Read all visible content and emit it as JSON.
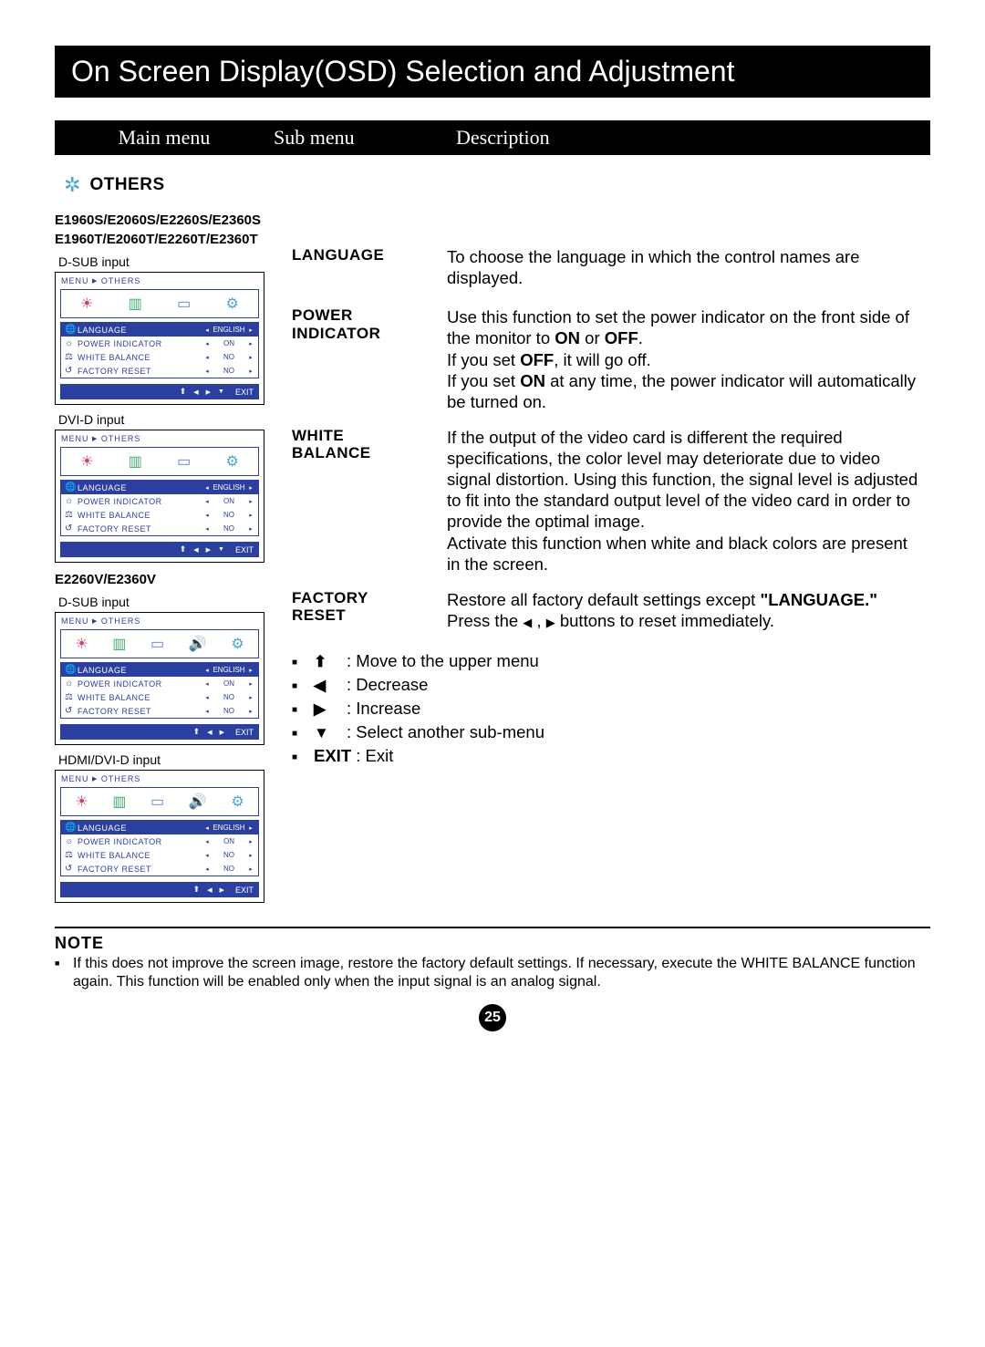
{
  "title": "On Screen Display(OSD) Selection and Adjustment",
  "headers": {
    "main": "Main menu",
    "sub": "Sub menu",
    "desc": "Description"
  },
  "section": {
    "label": "OTHERS"
  },
  "models": {
    "group1_line1": "E1960S/E2060S/E2260S/E2360S",
    "group1_line2": "E1960T/E2060T/E2260T/E2360T",
    "group2": "E2260V/E2360V"
  },
  "inputs": {
    "dsub": "D-SUB input",
    "dvid": "DVI-D input",
    "dsub2": "D-SUB input",
    "hdmi": "HDMI/DVI-D input"
  },
  "osd": {
    "crumb_menu": "MENU",
    "crumb_section": "OTHERS",
    "exit": "EXIT",
    "rows": [
      {
        "icon": "🌐",
        "name": "LANGUAGE",
        "val": "ENGLISH",
        "sel": true
      },
      {
        "icon": "☼",
        "name": "POWER INDICATOR",
        "val": "ON",
        "sel": false
      },
      {
        "icon": "⚖",
        "name": "WHITE BALANCE",
        "val": "NO",
        "sel": false
      },
      {
        "icon": "↺",
        "name": "FACTORY RESET",
        "val": "NO",
        "sel": false
      }
    ],
    "tabs4": [
      "☀",
      "▥",
      "▭",
      "⚙"
    ],
    "tabs5": [
      "☀",
      "▥",
      "▭",
      "🔊",
      "⚙"
    ]
  },
  "subs": {
    "language": {
      "label": "LANGUAGE",
      "desc": "To choose the language in which the control names are displayed."
    },
    "power": {
      "label1": "POWER",
      "label2": "INDICATOR",
      "d1": "Use this function to set the power indicator on the front side of the monitor to ",
      "d2": "ON",
      "d3": " or ",
      "d4": "OFF",
      "d5": ".",
      "d6": "If you set ",
      "d7": "OFF",
      "d8": ", it will go off.",
      "d9": "If you set ",
      "d10": "ON",
      "d11": " at any time, the power indicator will automatically be turned on."
    },
    "white": {
      "label1": "WHITE",
      "label2": "BALANCE",
      "desc": "If the output of the video card is different the required specifications, the color level may deteriorate due to video signal distortion. Using this function, the signal level is adjusted to fit into the standard output level of the video card in order to provide the optimal image.",
      "desc2": "Activate this function when white and black colors are present in the screen."
    },
    "factory": {
      "label1": "FACTORY",
      "label2": "RESET",
      "d1": "Restore all factory default settings except ",
      "d2": "\"LANGUAGE.\"",
      "d3": "Press the ",
      "d4": " buttons to reset immediately."
    }
  },
  "nav": {
    "up": ": Move to the upper menu",
    "left": ": Decrease",
    "right": ": Increase",
    "down": ": Select another sub-menu",
    "exit_label": "EXIT",
    "exit": " : Exit"
  },
  "note": {
    "title": "NOTE",
    "text": "If this does not improve the screen image, restore the factory default settings. If necessary, execute the WHITE BALANCE function again. This function will be enabled only when the input signal is an analog signal."
  },
  "page": "25"
}
